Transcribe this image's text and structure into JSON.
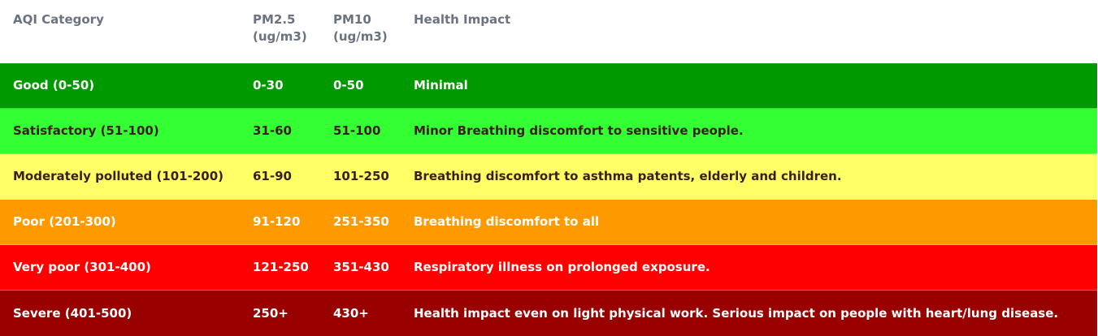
{
  "table": {
    "headers": {
      "category": "AQI Category",
      "pm25": "PM2.5\n(ug/m3)",
      "pm10": "PM10\n(ug/m3)",
      "impact": "Health Impact"
    },
    "rows": [
      {
        "category": "Good  (0-50)",
        "pm25": "0-30",
        "pm10": "0-50",
        "impact": "Minimal",
        "bg_color": "#009900",
        "text_color": "#ffffff"
      },
      {
        "category": "Satisfactory (51-100)",
        "pm25": "31-60",
        "pm10": "51-100",
        "impact": "Minor Breathing discomfort to sensitive people.",
        "bg_color": "#33ff33",
        "text_color": "#3d1d1d"
      },
      {
        "category": "Moderately polluted (101-200)",
        "pm25": "61-90",
        "pm10": "101-250",
        "impact": "Breathing discomfort to asthma patents, elderly and children.",
        "bg_color": "#ffff66",
        "text_color": "#3d1d1d"
      },
      {
        "category": "Poor (201-300)",
        "pm25": "91-120",
        "pm10": "251-350",
        "impact": "Breathing discomfort to all",
        "bg_color": "#ff9900",
        "text_color": "#ffffff"
      },
      {
        "category": "Very poor (301-400)",
        "pm25": "121-250",
        "pm10": "351-430",
        "impact": "Respiratory illness on prolonged exposure.",
        "bg_color": "#ff0000",
        "text_color": "#ffffff"
      },
      {
        "category": "Severe (401-500)",
        "pm25": "250+",
        "pm10": "430+",
        "impact": "Health impact even on light physical work. Serious impact on people with heart/lung disease.",
        "bg_color": "#990000",
        "text_color": "#ffffff"
      }
    ]
  },
  "colors": {
    "header_text": "#6b7280",
    "page_background": "#ffffff"
  }
}
